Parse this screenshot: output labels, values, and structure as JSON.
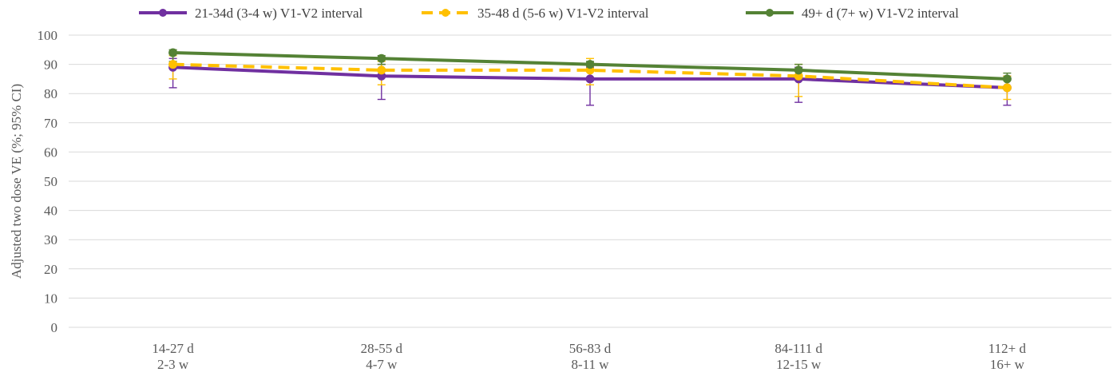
{
  "chart_data": {
    "type": "line",
    "title": "",
    "xlabel": "",
    "ylabel": "Adjusted two dose VE (%; 95% CI)",
    "ylim": [
      0,
      100
    ],
    "y_ticks": [
      0,
      10,
      20,
      30,
      40,
      50,
      60,
      70,
      80,
      90,
      100
    ],
    "grid": true,
    "legend_position": "top",
    "categories": [
      [
        "14-27 d",
        "2-3 w"
      ],
      [
        "28-55 d",
        "4-7 w"
      ],
      [
        "56-83 d",
        "8-11 w"
      ],
      [
        "84-111 d",
        "12-15 w"
      ],
      [
        "112+ d",
        "16+ w"
      ]
    ],
    "series": [
      {
        "name": "21-34d (3-4 w) V1-V2 interval",
        "color": "#7030A0",
        "line_style": "solid",
        "values": [
          89,
          86,
          85,
          85,
          82
        ],
        "ci_low": [
          82,
          78,
          76,
          77,
          76
        ],
        "ci_high": [
          92,
          90,
          89,
          89,
          86
        ]
      },
      {
        "name": "35-48 d (5-6 w) V1-V2 interval",
        "color": "#FFC000",
        "line_style": "dashed",
        "values": [
          90,
          88,
          88,
          86,
          82
        ],
        "ci_low": [
          85,
          83,
          83,
          79,
          78
        ],
        "ci_high": [
          93,
          91,
          92,
          90,
          86
        ]
      },
      {
        "name": "49+ d (7+ w) V1-V2 interval",
        "color": "#548235",
        "line_style": "solid",
        "values": [
          94,
          92,
          90,
          88,
          85
        ],
        "ci_low": [
          91,
          90,
          88,
          86,
          82
        ],
        "ci_high": [
          95,
          93,
          91,
          90,
          87
        ]
      }
    ]
  }
}
